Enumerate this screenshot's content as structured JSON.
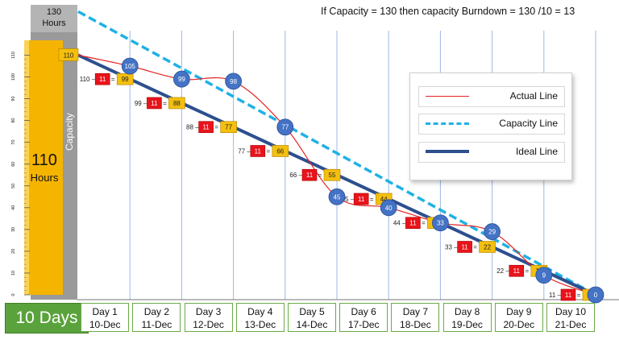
{
  "header": {
    "capacity_note": "If Capacity = 130 then capacity Burndown = 130 /10 = 13"
  },
  "capacity_bar": {
    "top_value": "130",
    "top_unit": "Hours",
    "label": "Capacity"
  },
  "hours_bar": {
    "value": "110",
    "unit": "Hours"
  },
  "days_label": "10 Days",
  "colors": {
    "actual": "#e52222",
    "capacity": "#1fb1e6",
    "ideal": "#2d4f8e",
    "day_border": "#6aaa45",
    "days_fill": "#5aa23c",
    "hours_bar": "#f5b400",
    "capacity_bar": "#9a9a9a",
    "red_box": "#e8141b",
    "yellow_box": "#f4bf0e",
    "circle": "#4472c4"
  },
  "legend": [
    {
      "label": "Actual Line",
      "style": "thin-red"
    },
    {
      "label": "Capacity Line",
      "style": "dashed-blue"
    },
    {
      "label": "Ideal Line",
      "style": "thick-navy"
    }
  ],
  "chart_data": {
    "type": "line",
    "title": "",
    "xlabel": "",
    "ylabel": "",
    "ylim": [
      0,
      110
    ],
    "y_ticks": [
      0,
      10,
      20,
      30,
      40,
      50,
      60,
      70,
      80,
      90,
      100,
      110
    ],
    "categories": [
      {
        "day": "Day 1",
        "date": "10-Dec"
      },
      {
        "day": "Day 2",
        "date": "11-Dec"
      },
      {
        "day": "Day 3",
        "date": "12-Dec"
      },
      {
        "day": "Day 4",
        "date": "13-Dec"
      },
      {
        "day": "Day 5",
        "date": "14-Dec"
      },
      {
        "day": "Day 6",
        "date": "17-Dec"
      },
      {
        "day": "Day 7",
        "date": "18-Dec"
      },
      {
        "day": "Day 8",
        "date": "19-Dec"
      },
      {
        "day": "Day 9",
        "date": "20-Dec"
      },
      {
        "day": "Day 10",
        "date": "21-Dec"
      }
    ],
    "series": [
      {
        "name": "Actual Line",
        "points": [
          [
            0,
            110
          ],
          [
            1,
            105
          ],
          [
            2,
            99
          ],
          [
            3,
            98
          ],
          [
            4,
            77
          ],
          [
            5,
            45
          ],
          [
            6,
            40
          ],
          [
            7,
            33
          ],
          [
            8,
            29
          ],
          [
            9,
            9
          ],
          [
            10,
            0
          ]
        ]
      },
      {
        "name": "Capacity Line",
        "points": [
          [
            0,
            130
          ],
          [
            10,
            0
          ]
        ]
      },
      {
        "name": "Ideal Line",
        "points": [
          [
            0,
            110
          ],
          [
            1,
            99
          ],
          [
            2,
            88
          ],
          [
            3,
            77
          ],
          [
            4,
            66
          ],
          [
            5,
            55
          ],
          [
            6,
            44
          ],
          [
            7,
            33
          ],
          [
            8,
            22
          ],
          [
            9,
            11
          ],
          [
            10,
            0
          ]
        ]
      }
    ],
    "ideal_steps": [
      {
        "from": "110",
        "burn": "11",
        "to": "99"
      },
      {
        "from": "99",
        "burn": "11",
        "to": "88"
      },
      {
        "from": "88",
        "burn": "11",
        "to": "77"
      },
      {
        "from": "77",
        "burn": "11",
        "to": "66"
      },
      {
        "from": "66",
        "burn": "11",
        "to": "55"
      },
      {
        "from": "55",
        "burn": "11",
        "to": "44"
      },
      {
        "from": "44",
        "burn": "11",
        "to": "33"
      },
      {
        "from": "33",
        "burn": "11",
        "to": "22"
      },
      {
        "from": "22",
        "burn": "11",
        "to": "11"
      },
      {
        "from": "11",
        "burn": "11",
        "to": "0"
      }
    ],
    "start_label": "110",
    "actual_labels": [
      "105",
      "99",
      "98",
      "77",
      "45",
      "40",
      "33",
      "29",
      "9",
      "0"
    ]
  }
}
